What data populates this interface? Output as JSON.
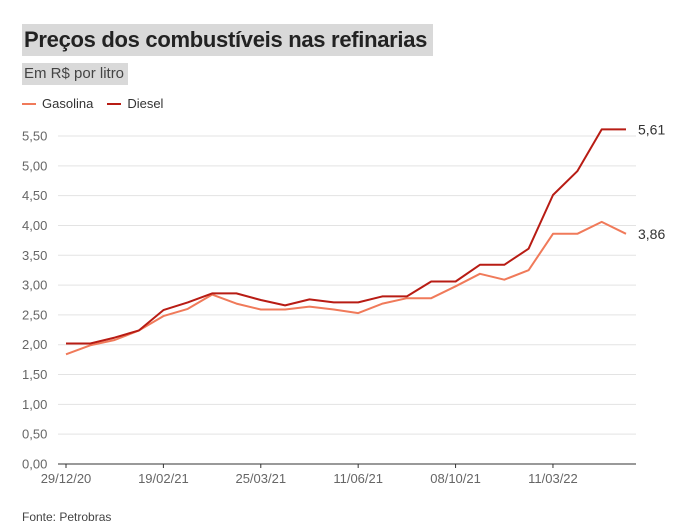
{
  "chart_data": {
    "type": "line",
    "title": "Preços dos combustíveis nas refinarias",
    "subtitle": "Em R$ por litro",
    "source": "Fonte: Petrobras",
    "ylim": [
      0,
      5.5
    ],
    "yticks": [
      "0,00",
      "0,50",
      "1,00",
      "1,50",
      "2,00",
      "2,50",
      "3,00",
      "3,50",
      "4,00",
      "4,50",
      "5,00",
      "5,50"
    ],
    "x_tick_labels": [
      {
        "label": "29/12/20",
        "index": 0
      },
      {
        "label": "19/02/21",
        "index": 4
      },
      {
        "label": "25/03/21",
        "index": 8
      },
      {
        "label": "11/06/21",
        "index": 12
      },
      {
        "label": "08/10/21",
        "index": 16
      },
      {
        "label": "11/03/22",
        "index": 20
      }
    ],
    "series": [
      {
        "name": "Gasolina",
        "color": "#f07a5a",
        "values": [
          1.84,
          1.99,
          2.08,
          2.24,
          2.48,
          2.6,
          2.84,
          2.69,
          2.59,
          2.59,
          2.64,
          2.59,
          2.53,
          2.69,
          2.78,
          2.78,
          2.98,
          3.19,
          3.09,
          3.25,
          3.86,
          3.86,
          4.06,
          3.86
        ],
        "end_label": "3,86"
      },
      {
        "name": "Diesel",
        "color": "#b81c14",
        "values": [
          2.02,
          2.02,
          2.12,
          2.24,
          2.58,
          2.71,
          2.86,
          2.86,
          2.75,
          2.66,
          2.76,
          2.71,
          2.71,
          2.81,
          2.81,
          3.06,
          3.06,
          3.34,
          3.34,
          3.61,
          4.51,
          4.91,
          5.61,
          5.61
        ],
        "end_label": "5,61"
      }
    ]
  }
}
